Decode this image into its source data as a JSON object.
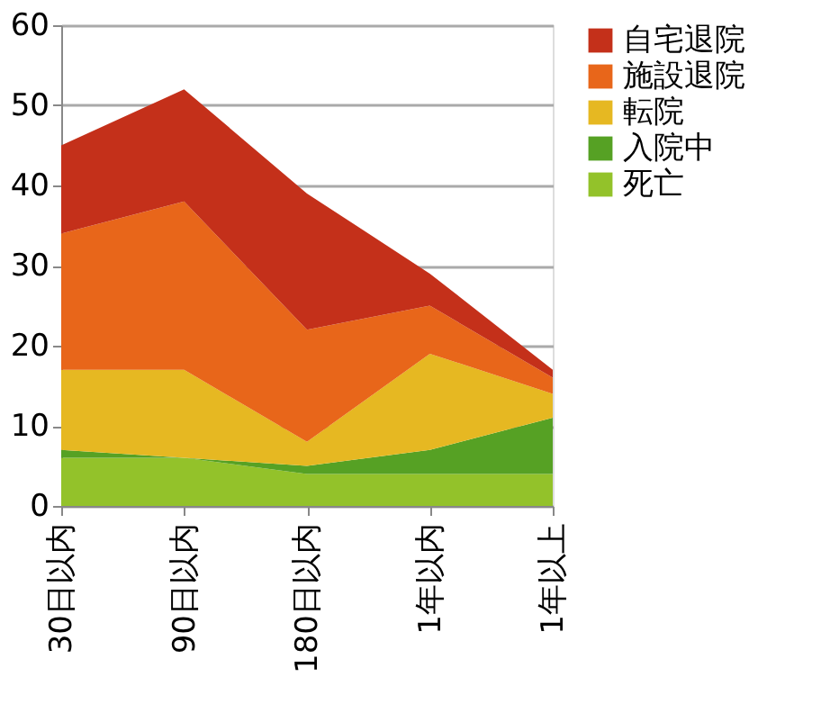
{
  "chart_data": {
    "type": "area",
    "stacked": true,
    "categories": [
      "30日以内",
      "90日以内",
      "180日以内",
      "1年以内",
      "1年以上"
    ],
    "series": [
      {
        "name": "死亡",
        "color": "#93c22a",
        "values": [
          6,
          6,
          4,
          4,
          4
        ]
      },
      {
        "name": "入院中",
        "color": "#56a124",
        "values": [
          1,
          0,
          1,
          3,
          7
        ]
      },
      {
        "name": "転院",
        "color": "#e6b822",
        "values": [
          10,
          11,
          3,
          12,
          3
        ]
      },
      {
        "name": "施設退院",
        "color": "#e8661a",
        "values": [
          17,
          21,
          14,
          6,
          2
        ]
      },
      {
        "name": "自宅退院",
        "color": "#c4301a",
        "values": [
          11,
          14,
          17,
          4,
          1
        ]
      }
    ],
    "ylim": [
      0,
      60
    ],
    "yticks": [
      0,
      10,
      20,
      30,
      40,
      50,
      60
    ],
    "grid": "y",
    "legend": "right"
  }
}
